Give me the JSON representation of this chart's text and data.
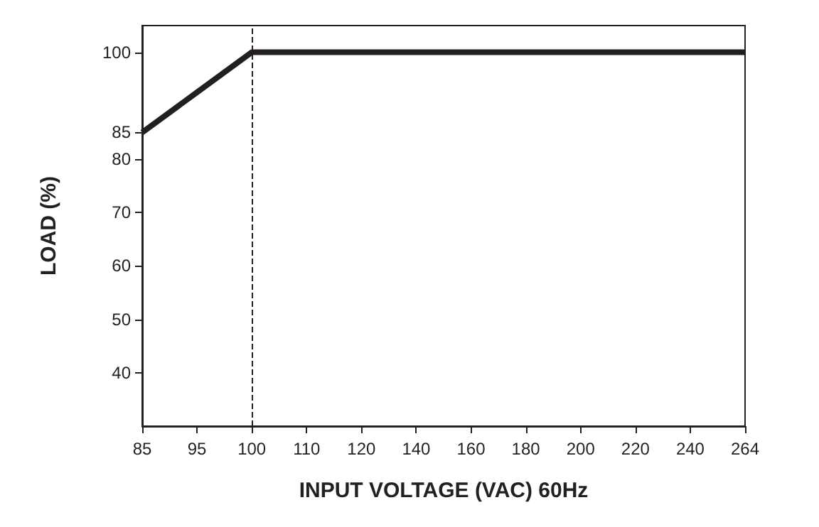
{
  "chart_data": {
    "type": "line",
    "xlabel": "INPUT VOLTAGE (VAC) 60Hz",
    "ylabel": "LOAD (%)",
    "categories": [
      "85",
      "95",
      "100",
      "110",
      "120",
      "140",
      "160",
      "180",
      "200",
      "220",
      "240",
      "264"
    ],
    "series": [
      {
        "color": "#231f20",
        "values": [
          85,
          92.5,
          100,
          100,
          100,
          100,
          100,
          100,
          100,
          100,
          100,
          100
        ]
      }
    ],
    "ylim": [
      30,
      105
    ],
    "yticks": [
      40,
      50,
      60,
      70,
      80,
      85,
      100
    ],
    "ref_lines": [
      {
        "axis": "x",
        "value": "100",
        "line_style": "dashed",
        "color": "#231f20"
      }
    ],
    "grid": false,
    "marker": "none",
    "line_style": "solid"
  }
}
